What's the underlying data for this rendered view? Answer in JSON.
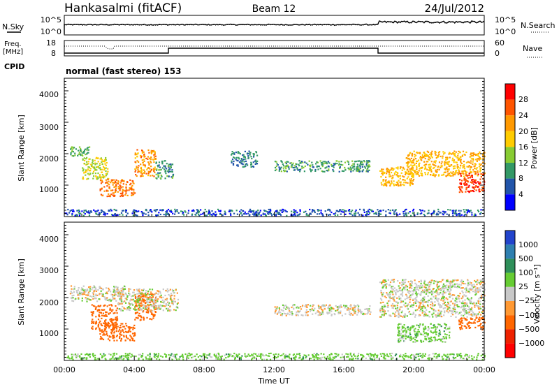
{
  "header": {
    "station": "Hankasalmi (fitACF)",
    "beam": "Beam 12",
    "date": "24/Jul/2012"
  },
  "noise_panel": {
    "left_label": "N.Sky",
    "right_label": "N.Search",
    "left_ticks": [
      "10^5",
      "10^0"
    ],
    "right_ticks": [
      "10^5",
      "10^0"
    ]
  },
  "freq_panel": {
    "left_label_line1": "Freq.",
    "left_label_line2": "[MHz]",
    "right_label": "Nave",
    "left_ticks": [
      "18",
      "8"
    ],
    "right_ticks": [
      "60",
      "0"
    ]
  },
  "cpid": {
    "label": "CPID",
    "text": "normal (fast stereo) 153"
  },
  "chart_data": [
    {
      "type": "heatmap",
      "name": "power",
      "ylabel": "Slant Range [km]",
      "yticks": [
        "4000",
        "3000",
        "2000",
        "1000"
      ],
      "ylim": [
        200,
        4600
      ],
      "xlim": [
        0,
        24
      ],
      "colorbar_label": "Power [dB]",
      "colorbar_ticks": [
        "28",
        "24",
        "20",
        "16",
        "12",
        "8",
        "4"
      ],
      "colorbar_colors": [
        "#ff0000",
        "#ff5500",
        "#ff9900",
        "#ffcc00",
        "#88cc33",
        "#339966",
        "#2255aa",
        "#0000ff"
      ],
      "echo_bands": [
        {
          "t": [
            0.3,
            1.5
          ],
          "r": [
            2150,
            2450
          ],
          "value": 12
        },
        {
          "t": [
            1.0,
            2.5
          ],
          "r": [
            1400,
            2100
          ],
          "value": 16
        },
        {
          "t": [
            2.0,
            4.0
          ],
          "r": [
            850,
            1400
          ],
          "value": 24
        },
        {
          "t": [
            4.0,
            5.2
          ],
          "r": [
            1500,
            2350
          ],
          "value": 22
        },
        {
          "t": [
            5.2,
            6.2
          ],
          "r": [
            1400,
            2000
          ],
          "value": 10
        },
        {
          "t": [
            9.5,
            11.0
          ],
          "r": [
            1800,
            2300
          ],
          "value": 8
        },
        {
          "t": [
            12.0,
            17.5
          ],
          "r": [
            1650,
            2000
          ],
          "value": 10
        },
        {
          "t": [
            18.0,
            20.0
          ],
          "r": [
            1200,
            1800
          ],
          "value": 20
        },
        {
          "t": [
            19.5,
            24.0
          ],
          "r": [
            1500,
            2300
          ],
          "value": 20
        },
        {
          "t": [
            22.5,
            24.0
          ],
          "r": [
            1000,
            1600
          ],
          "value": 28
        },
        {
          "t": [
            0.0,
            24.0
          ],
          "r": [
            250,
            450
          ],
          "value": 6
        }
      ]
    },
    {
      "type": "heatmap",
      "name": "velocity",
      "ylabel": "Slant Range [km]",
      "yticks": [
        "4000",
        "3000",
        "2000",
        "1000"
      ],
      "ylim": [
        200,
        4600
      ],
      "xlim": [
        0,
        24
      ],
      "colorbar_label": "Velocity [m s⁻¹]",
      "colorbar_ticks": [
        "1000",
        "500",
        "100",
        "25",
        "−25",
        "−100",
        "−500",
        "−1000"
      ],
      "colorbar_colors": [
        "#2244cc",
        "#2e7fb0",
        "#2f8f5a",
        "#66cc33",
        "#c8c8c8",
        "#ff9933",
        "#ff6600",
        "#ee2200",
        "#ff0000"
      ],
      "echo_bands": [
        {
          "t": [
            0.3,
            3.5
          ],
          "r": [
            2100,
            2600
          ],
          "value": 0
        },
        {
          "t": [
            1.5,
            3.0
          ],
          "r": [
            1200,
            2000
          ],
          "value": -300
        },
        {
          "t": [
            2.0,
            4.0
          ],
          "r": [
            850,
            1400
          ],
          "value": -300
        },
        {
          "t": [
            4.0,
            5.2
          ],
          "r": [
            1500,
            2350
          ],
          "value": -300
        },
        {
          "t": [
            3.0,
            6.5
          ],
          "r": [
            1800,
            2500
          ],
          "value": 0
        },
        {
          "t": [
            12.0,
            17.5
          ],
          "r": [
            1650,
            2000
          ],
          "value": 0
        },
        {
          "t": [
            18.0,
            24.0
          ],
          "r": [
            1600,
            2800
          ],
          "value": 0
        },
        {
          "t": [
            19.0,
            22.0
          ],
          "r": [
            800,
            1400
          ],
          "value": 60
        },
        {
          "t": [
            22.5,
            24.0
          ],
          "r": [
            1200,
            1600
          ],
          "value": -300
        },
        {
          "t": [
            0.0,
            24.0
          ],
          "r": [
            250,
            450
          ],
          "value": 60
        }
      ]
    }
  ],
  "x_axis": {
    "label": "Time UT",
    "ticks": [
      "00:00",
      "04:00",
      "08:00",
      "12:00",
      "16:00",
      "20:00",
      "00:00"
    ]
  }
}
